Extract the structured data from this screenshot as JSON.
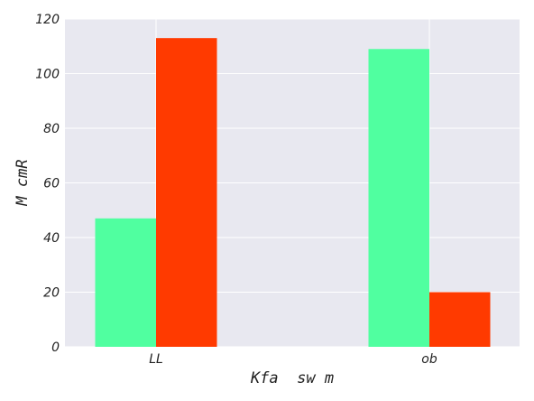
{
  "chart_data": {
    "type": "bar",
    "title": "",
    "xlabel": "Kfa  sw m",
    "ylabel": "M cmR",
    "categories": [
      "LL",
      "ob"
    ],
    "series": [
      {
        "values": [
          47,
          109
        ],
        "color": "#50ffa0"
      },
      {
        "values": [
          113,
          20
        ],
        "color": "#ff3a00"
      }
    ],
    "ylim": [
      0,
      120
    ],
    "yticks": [
      0,
      20,
      40,
      60,
      80,
      100,
      120
    ],
    "grid": true,
    "background": "#e8e8f0",
    "grid_color": "#ffffff",
    "legend": "none"
  }
}
